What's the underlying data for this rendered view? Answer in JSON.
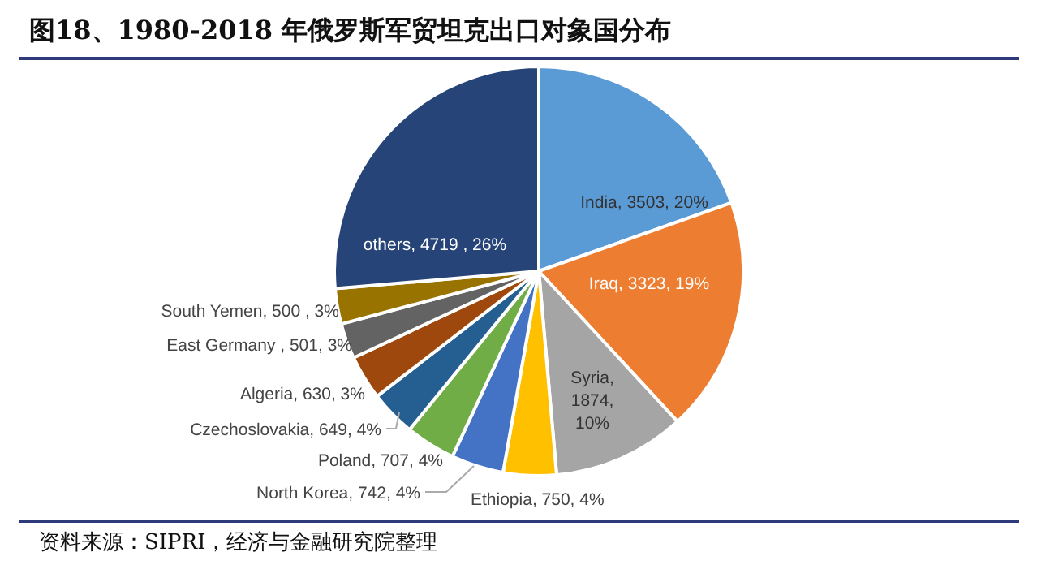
{
  "chart_data": {
    "type": "pie",
    "title": "图18、1980-2018 年俄罗斯军贸坦克出口对象国分布",
    "categories": [
      "India",
      "Iraq",
      "Syria",
      "Ethiopia",
      "North Korea",
      "Poland",
      "Czechoslovakia",
      "Algeria",
      "East Germany",
      "South Yemen",
      "others"
    ],
    "values": [
      3503,
      3323,
      1874,
      750,
      742,
      707,
      649,
      630,
      501,
      500,
      4719
    ],
    "value_labels": [
      ", 3503, 20%",
      ", 3323, 19%",
      ", 1874, 10%",
      ", 750, 4%",
      ", 742, 4%",
      ", 707, 4%",
      ", 649, 4%",
      ", 630, 3%",
      " , 501, 3%",
      ", 500 , 3%",
      ", 4719 , 26%"
    ],
    "colors": [
      "#5b9bd5",
      "#ed7d31",
      "#a5a5a5",
      "#ffc000",
      "#4472c4",
      "#70ad47",
      "#255e91",
      "#9e480e",
      "#636363",
      "#997300",
      "#264478"
    ],
    "annotations": [
      "资料来源：SIPRI，经济与金融研究院整理"
    ]
  }
}
